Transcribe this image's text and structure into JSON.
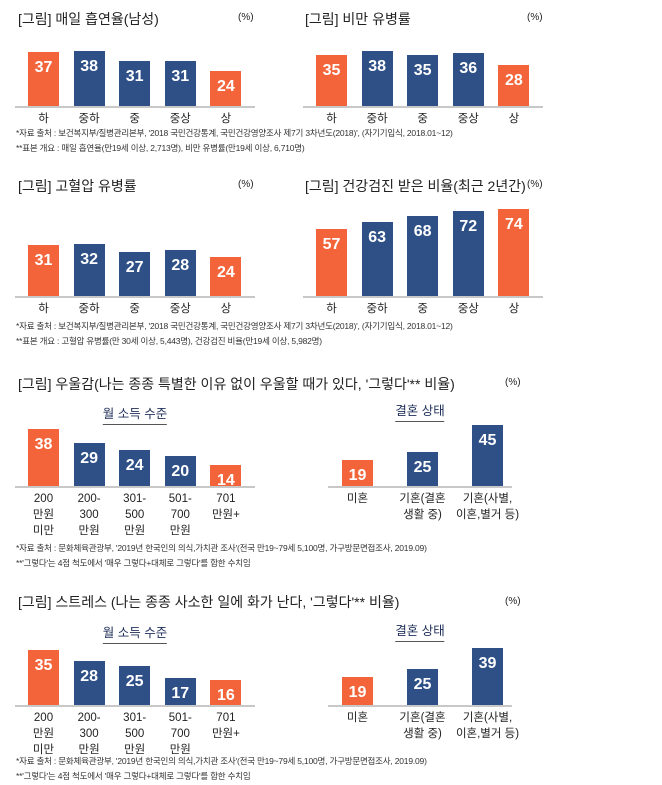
{
  "colors": {
    "highlight": "#F4643A",
    "base": "#2E5087"
  },
  "chart_data": [
    {
      "type": "bar",
      "title": "[그림] 매일 흡연율(남성)",
      "unit": "(%)",
      "categories": [
        "하",
        "중하",
        "중",
        "중상",
        "상"
      ],
      "values": [
        37,
        38,
        31,
        31,
        24
      ],
      "highlight": [
        true,
        false,
        false,
        false,
        true
      ]
    },
    {
      "type": "bar",
      "title": "[그림] 비만 유병률",
      "unit": "(%)",
      "categories": [
        "하",
        "중하",
        "중",
        "중상",
        "상"
      ],
      "values": [
        35,
        38,
        35,
        36,
        28
      ],
      "highlight": [
        true,
        false,
        false,
        false,
        true
      ]
    },
    {
      "type": "bar",
      "title": "[그림] 고혈압 유병률",
      "unit": "(%)",
      "categories": [
        "하",
        "중하",
        "중",
        "중상",
        "상"
      ],
      "values": [
        31,
        32,
        27,
        28,
        24
      ],
      "highlight": [
        true,
        false,
        false,
        false,
        true
      ]
    },
    {
      "type": "bar",
      "title": "[그림] 건강검진 받은 비율(최근 2년간)",
      "unit": "(%)",
      "categories": [
        "하",
        "중하",
        "중",
        "중상",
        "상"
      ],
      "values": [
        57,
        63,
        68,
        72,
        74
      ],
      "highlight": [
        true,
        false,
        false,
        false,
        true
      ]
    },
    {
      "type": "bar",
      "title": "[그림] 우울감(나는 종종 특별한 이유 없이 우울할 때가 있다, '그렇다'** 비율)",
      "unit": "(%)",
      "subtitle": "월 소득 수준",
      "categories": [
        "200\n만원\n미만",
        "200-\n300\n만원",
        "301-\n500\n만원",
        "501-\n700\n만원",
        "701\n만원+"
      ],
      "values": [
        38,
        29,
        24,
        20,
        14
      ],
      "highlight": [
        true,
        false,
        false,
        false,
        true
      ]
    },
    {
      "type": "bar",
      "subtitle": "결혼 상태",
      "categories": [
        "미혼",
        "기혼(결혼\n생활 중)",
        "기혼(사별,\n이혼,별거 등)"
      ],
      "values": [
        19,
        25,
        45
      ],
      "highlight": [
        true,
        false,
        false
      ]
    },
    {
      "type": "bar",
      "title": "[그림] 스트레스 (나는 종종 사소한 일에 화가 난다, '그렇다'** 비율)",
      "unit": "(%)",
      "subtitle": "월 소득 수준",
      "categories": [
        "200\n만원\n미만",
        "200-\n300\n만원",
        "301-\n500\n만원",
        "501-\n700\n만원",
        "701\n만원+"
      ],
      "values": [
        35,
        28,
        25,
        17,
        16
      ],
      "highlight": [
        true,
        false,
        false,
        false,
        true
      ]
    },
    {
      "type": "bar",
      "subtitle": "결혼 상태",
      "categories": [
        "미혼",
        "기혼(결혼\n생활 중)",
        "기혼(사별,\n이혼,별거 등)"
      ],
      "values": [
        19,
        25,
        39
      ],
      "highlight": [
        true,
        false,
        false
      ]
    }
  ],
  "notes": {
    "row1_source": "*자료 출처 : 보건복지부/질병관리본부, '2018 국민건강통계, 국민건강영양조사 제7기 3차년도(2018)', (자기기입식, 2018.01~12)",
    "row1_sample": "**표본 개요 : 매일 흡연율(만19세 이상, 2,713명), 비만 유병률(만19세 이상, 6,710명)",
    "row2_source": "*자료 출처 : 보건복지부/질병관리본부, '2018 국민건강통계, 국민건강영양조사 제7기 3차년도(2018)', (자기기입식, 2018.01~12)",
    "row2_sample": "**표본 개요 : 고혈압 유병률(만 30세 이상, 5,443명), 건강검진 비율(만19세 이상, 5,982명)",
    "dep_source": "*자료 출처 : 문화체육관광부, '2019년 한국인의 의식,가치관 조사'(전국 만19~79세 5,100명, 가구방문면접조사, 2019.09)",
    "dep_def": "**'그렇다'는 4점 척도에서 '매우 그렇다+대체로 그렇다'를 합한 수치임",
    "str_source": "*자료 출처 : 문화체육관광부, '2019년 한국인의 의식,가치관 조사'(전국 만19~79세 5,100명, 가구방문면접조사, 2019.09)",
    "str_def": "**'그렇다'는 4점 척도에서 '매우 그렇다+대체로 그렇다'를 합한 수치임"
  }
}
